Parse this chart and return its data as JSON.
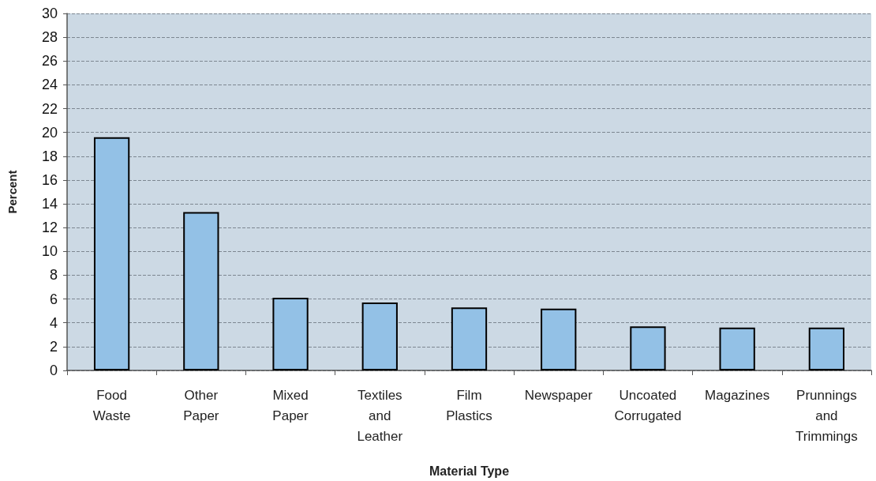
{
  "chart_data": {
    "type": "bar",
    "xlabel": "Material Type",
    "ylabel": "Percent",
    "categories": [
      "Food Waste",
      "Other Paper",
      "Mixed Paper",
      "Textiles and Leather",
      "Film Plastics",
      "Newspaper",
      "Uncoated Corrugated",
      "Magazines",
      "Prunnings and Trimmings"
    ],
    "values": [
      19.6,
      13.3,
      6.1,
      5.7,
      5.3,
      5.2,
      3.7,
      3.6,
      3.6
    ],
    "color": "#93c1e6",
    "ylim": [
      0,
      30
    ],
    "yticks": [
      0,
      2,
      4,
      6,
      8,
      10,
      12,
      14,
      16,
      18,
      20,
      22,
      24,
      26,
      28,
      30
    ],
    "grid": "y"
  }
}
